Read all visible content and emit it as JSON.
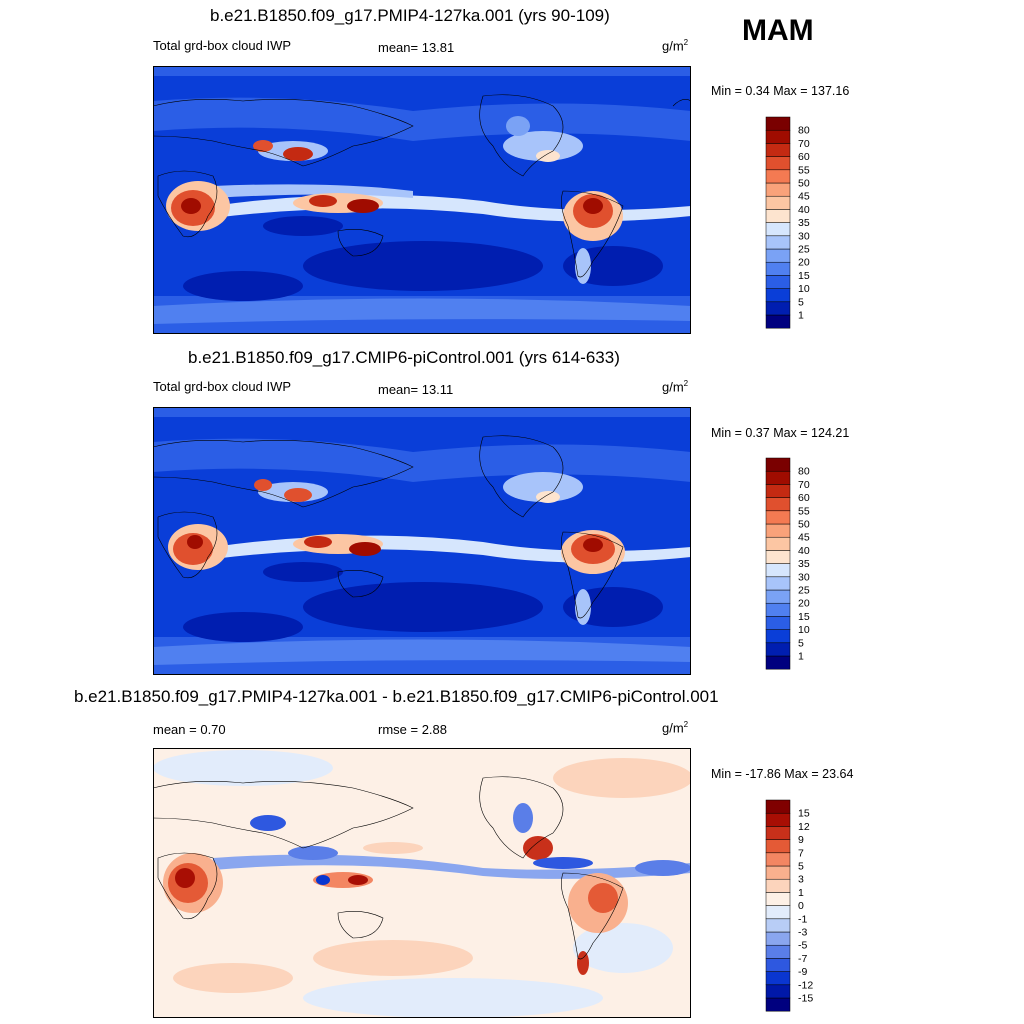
{
  "season": "MAM",
  "panels": [
    {
      "title": "b.e21.B1850.f09_g17.PMIP4-127ka.001 (yrs 90-109)",
      "left_label": "Total grd-box cloud IWP",
      "center_label": "mean=  13.81",
      "units": "g/m",
      "units_sup": "2",
      "minmax": "Min =   0.34 Max = 137.16",
      "colorbar": {
        "labels": [
          "1",
          "5",
          "10",
          "15",
          "20",
          "25",
          "30",
          "35",
          "40",
          "45",
          "50",
          "55",
          "60",
          "70",
          "80"
        ],
        "colors": [
          "#00007f",
          "#001eb0",
          "#0a3ed8",
          "#2b5ee6",
          "#5080f0",
          "#7aa2f5",
          "#a8c4fa",
          "#d6e6fd",
          "#fde4cf",
          "#fcc6a3",
          "#f9a27a",
          "#f47a52",
          "#e0502e",
          "#c42a12",
          "#a00c00",
          "#7a0000"
        ]
      }
    },
    {
      "title": "b.e21.B1850.f09_g17.CMIP6-piControl.001 (yrs 614-633)",
      "left_label": "Total grd-box cloud IWP",
      "center_label": "mean=  13.11",
      "units": "g/m",
      "units_sup": "2",
      "minmax": "Min =   0.37 Max = 124.21",
      "colorbar": {
        "labels": [
          "1",
          "5",
          "10",
          "15",
          "20",
          "25",
          "30",
          "35",
          "40",
          "45",
          "50",
          "55",
          "60",
          "70",
          "80"
        ],
        "colors": [
          "#00007f",
          "#001eb0",
          "#0a3ed8",
          "#2b5ee6",
          "#5080f0",
          "#7aa2f5",
          "#a8c4fa",
          "#d6e6fd",
          "#fde4cf",
          "#fcc6a3",
          "#f9a27a",
          "#f47a52",
          "#e0502e",
          "#c42a12",
          "#a00c00",
          "#7a0000"
        ]
      }
    },
    {
      "title": "b.e21.B1850.f09_g17.PMIP4-127ka.001 - b.e21.B1850.f09_g17.CMIP6-piControl.001",
      "left_label": "mean =   0.70",
      "center_label": "rmse =   2.88",
      "units": "g/m",
      "units_sup": "2",
      "minmax": "Min = -17.86 Max =  23.64",
      "colorbar": {
        "labels": [
          "-15",
          "-12",
          "-9",
          "-7",
          "-5",
          "-3",
          "-1",
          "0",
          "1",
          "3",
          "5",
          "7",
          "9",
          "12",
          "15"
        ],
        "colors": [
          "#00007f",
          "#0018a8",
          "#0a36d0",
          "#2e58e0",
          "#5a7ee8",
          "#8aa6ef",
          "#b8cdf6",
          "#e2ecfb",
          "#fdf0e6",
          "#fcd4bc",
          "#f9b08e",
          "#f38662",
          "#e45a36",
          "#c8301a",
          "#a80e04",
          "#800000"
        ]
      }
    }
  ]
}
